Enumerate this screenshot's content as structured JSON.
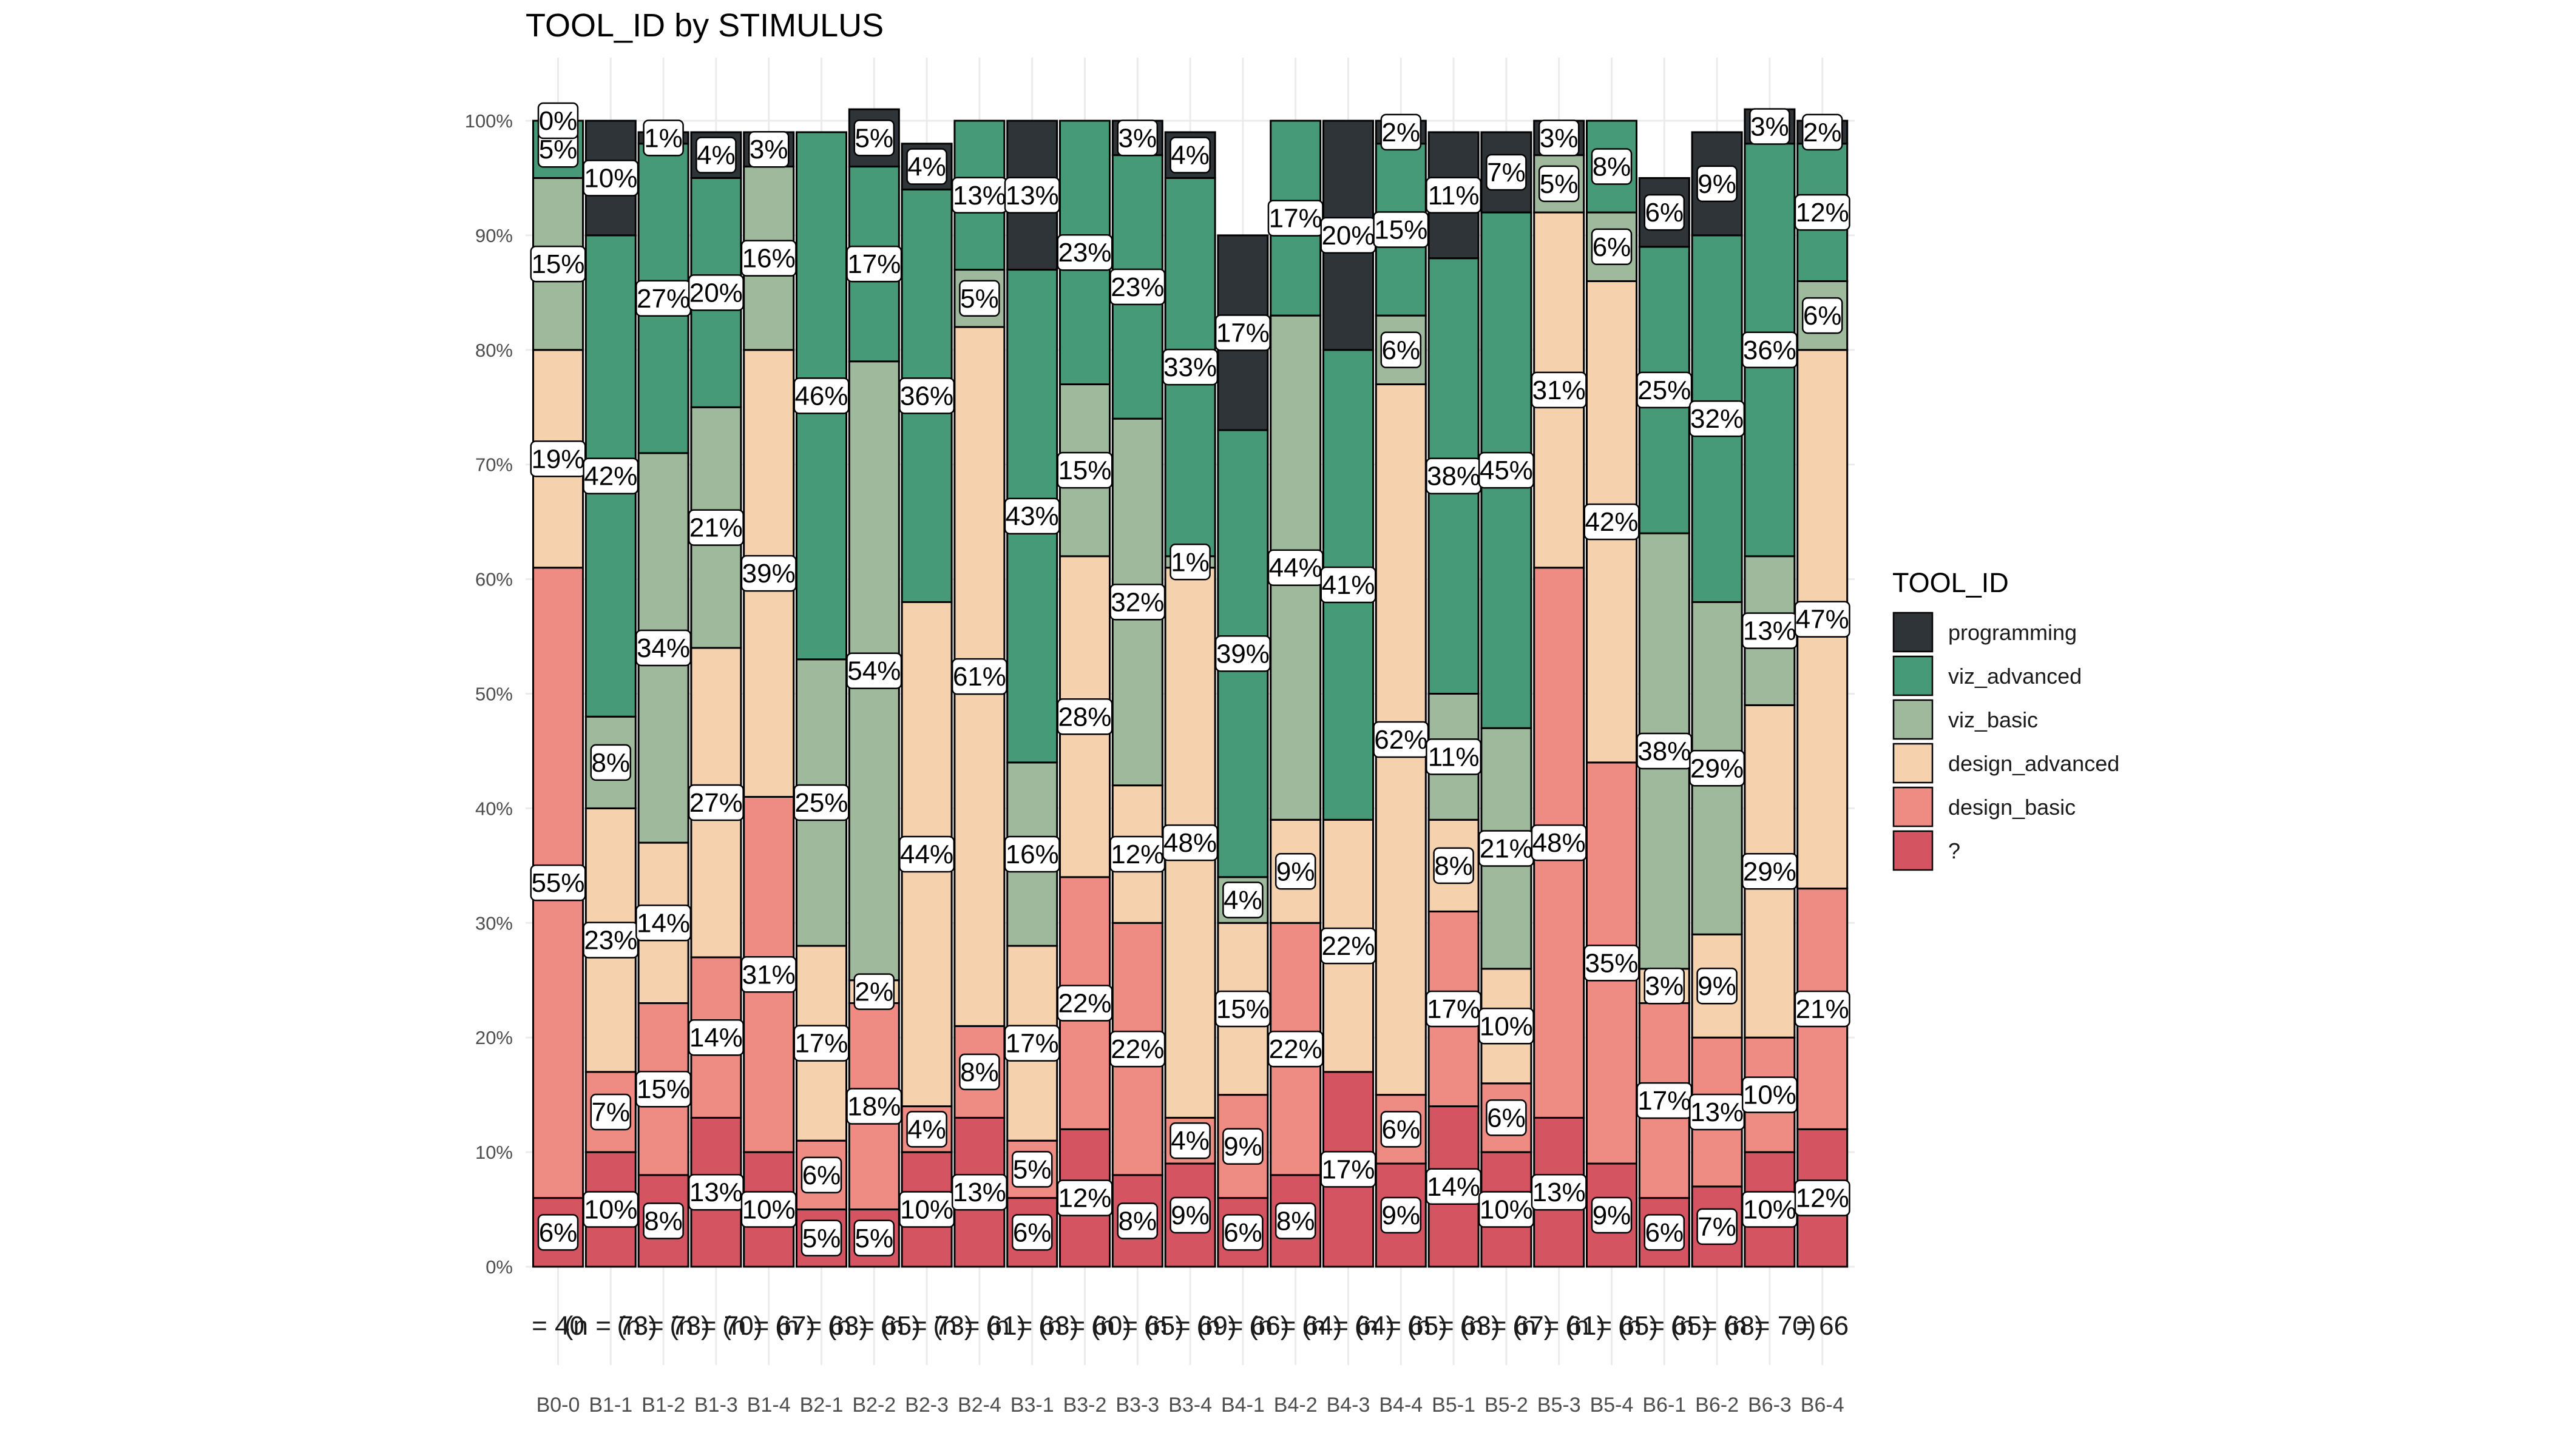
{
  "chart_data": {
    "type": "bar",
    "stacked": true,
    "title": "TOOL_ID by STIMULUS",
    "xlabel": "",
    "ylabel": "",
    "ylim": [
      0,
      100
    ],
    "y_ticks": [
      "0%",
      "10%",
      "20%",
      "30%",
      "40%",
      "50%",
      "60%",
      "70%",
      "80%",
      "90%",
      "100%"
    ],
    "grid": true,
    "legend_title": "TOOL_ID",
    "legend_position": "right",
    "legend": [
      "programming",
      "viz_advanced",
      "viz_basic",
      "design_advanced",
      "design_basic",
      "?"
    ],
    "colors": {
      "programming": "#2f3439",
      "viz_advanced": "#469a78",
      "viz_basic": "#9fb99c",
      "design_advanced": "#f5d2ad",
      "design_basic": "#ee8b83",
      "?": "#d55462"
    },
    "stack_order_bottom_to_top": [
      "?",
      "design_basic",
      "design_advanced",
      "viz_basic",
      "viz_advanced",
      "programming"
    ],
    "categories": [
      "B0-0",
      "B1-1",
      "B1-2",
      "B1-3",
      "B1-4",
      "B2-1",
      "B2-2",
      "B2-3",
      "B2-4",
      "B3-1",
      "B3-2",
      "B3-3",
      "B3-4",
      "B4-1",
      "B4-2",
      "B4-3",
      "B4-4",
      "B5-1",
      "B5-2",
      "B5-3",
      "B5-4",
      "B6-1",
      "B6-2",
      "B6-3",
      "B6-4"
    ],
    "n_labels": [
      "= 40",
      "(n = 73)",
      "(n = 73)",
      "(n = 70)",
      "(n = 67)",
      "(n = 63)",
      "(n = 65)",
      "(n = 73)",
      "(n = 61)",
      "(n = 63)",
      "(n = 60)",
      "(n = 65)",
      "(n = 69)",
      "(n = 66)",
      "(n = 64)",
      "(n = 64)",
      "(n = 65)",
      "(n = 63)",
      "(n = 67)",
      "(n = 61)",
      "(n = 65)",
      "(n = 65)",
      "(n = 68)",
      "(n = 70)",
      "= 66"
    ],
    "series": [
      {
        "name": "?",
        "values": [
          6,
          10,
          8,
          13,
          10,
          5,
          5,
          10,
          13,
          6,
          12,
          8,
          9,
          6,
          8,
          17,
          9,
          14,
          10,
          13,
          9,
          6,
          7,
          10,
          12
        ],
        "labels": [
          "6%",
          "10%",
          "8%",
          "13%",
          "10%",
          "5%",
          "5%",
          "10%",
          "13%",
          "6%",
          "12%",
          "8%",
          "9%",
          "6%",
          "8%",
          "17%",
          "9%",
          "14%",
          "10%",
          "13%",
          "9%",
          "6%",
          "7%",
          "10%",
          "12%"
        ]
      },
      {
        "name": "design_basic",
        "values": [
          55,
          7,
          15,
          14,
          31,
          6,
          18,
          4,
          8,
          5,
          22,
          22,
          4,
          9,
          22,
          0,
          6,
          17,
          6,
          48,
          35,
          17,
          13,
          10,
          21
        ],
        "labels": [
          "55%",
          "7%",
          "15%",
          "14%",
          "31%",
          "6%",
          "18%",
          "4%",
          "8%",
          "5%",
          "22%",
          "22%",
          "4%",
          "9%",
          "22%",
          "",
          "6%",
          "17%",
          "6%",
          "48%",
          "35%",
          "17%",
          "13%",
          "10%",
          "21%"
        ]
      },
      {
        "name": "design_advanced",
        "values": [
          19,
          23,
          14,
          27,
          39,
          17,
          2,
          44,
          61,
          17,
          28,
          12,
          48,
          15,
          9,
          22,
          62,
          8,
          10,
          31,
          42,
          3,
          9,
          29,
          47
        ],
        "labels": [
          "19%",
          "23%",
          "14%",
          "27%",
          "39%",
          "17%",
          "2%",
          "44%",
          "61%",
          "17%",
          "28%",
          "12%",
          "48%",
          "15%",
          "9%",
          "22%",
          "62%",
          "8%",
          "10%",
          "31%",
          "42%",
          "3%",
          "9%",
          "29%",
          "47%"
        ]
      },
      {
        "name": "viz_basic",
        "values": [
          15,
          8,
          34,
          21,
          16,
          25,
          54,
          0,
          5,
          16,
          15,
          32,
          1,
          4,
          44,
          0,
          6,
          11,
          21,
          5,
          6,
          38,
          29,
          13,
          6
        ],
        "labels": [
          "15%",
          "8%",
          "34%",
          "21%",
          "16%",
          "25%",
          "54%",
          "",
          "5%",
          "16%",
          "15%",
          "32%",
          "1%",
          "4%",
          "44%",
          "",
          "6%",
          "11%",
          "21%",
          "5%",
          "6%",
          "38%",
          "29%",
          "13%",
          "6%"
        ]
      },
      {
        "name": "viz_advanced",
        "values": [
          5,
          42,
          27,
          20,
          0,
          46,
          17,
          36,
          13,
          43,
          23,
          23,
          33,
          39,
          17,
          41,
          15,
          38,
          45,
          0,
          8,
          25,
          32,
          36,
          12
        ],
        "labels": [
          "5%",
          "42%",
          "27%",
          "20%",
          "",
          "46%",
          "17%",
          "36%",
          "13%",
          "43%",
          "23%",
          "23%",
          "33%",
          "39%",
          "17%",
          "41%",
          "15%",
          "38%",
          "45%",
          "",
          "8%",
          "25%",
          "32%",
          "36%",
          "12%"
        ]
      },
      {
        "name": "programming",
        "values": [
          0,
          10,
          1,
          4,
          3,
          0,
          5,
          4,
          0,
          13,
          0,
          3,
          4,
          17,
          0,
          20,
          2,
          11,
          7,
          3,
          0,
          6,
          9,
          3,
          2
        ],
        "labels": [
          "0%",
          "10%",
          "1%",
          "4%",
          "3%",
          "",
          "5%",
          "4%",
          "",
          "13%",
          "",
          "3%",
          "4%",
          "17%",
          "",
          "20%",
          "2%",
          "11%",
          "7%",
          "3%",
          "",
          "6%",
          "9%",
          "3%",
          "2%"
        ]
      }
    ]
  }
}
